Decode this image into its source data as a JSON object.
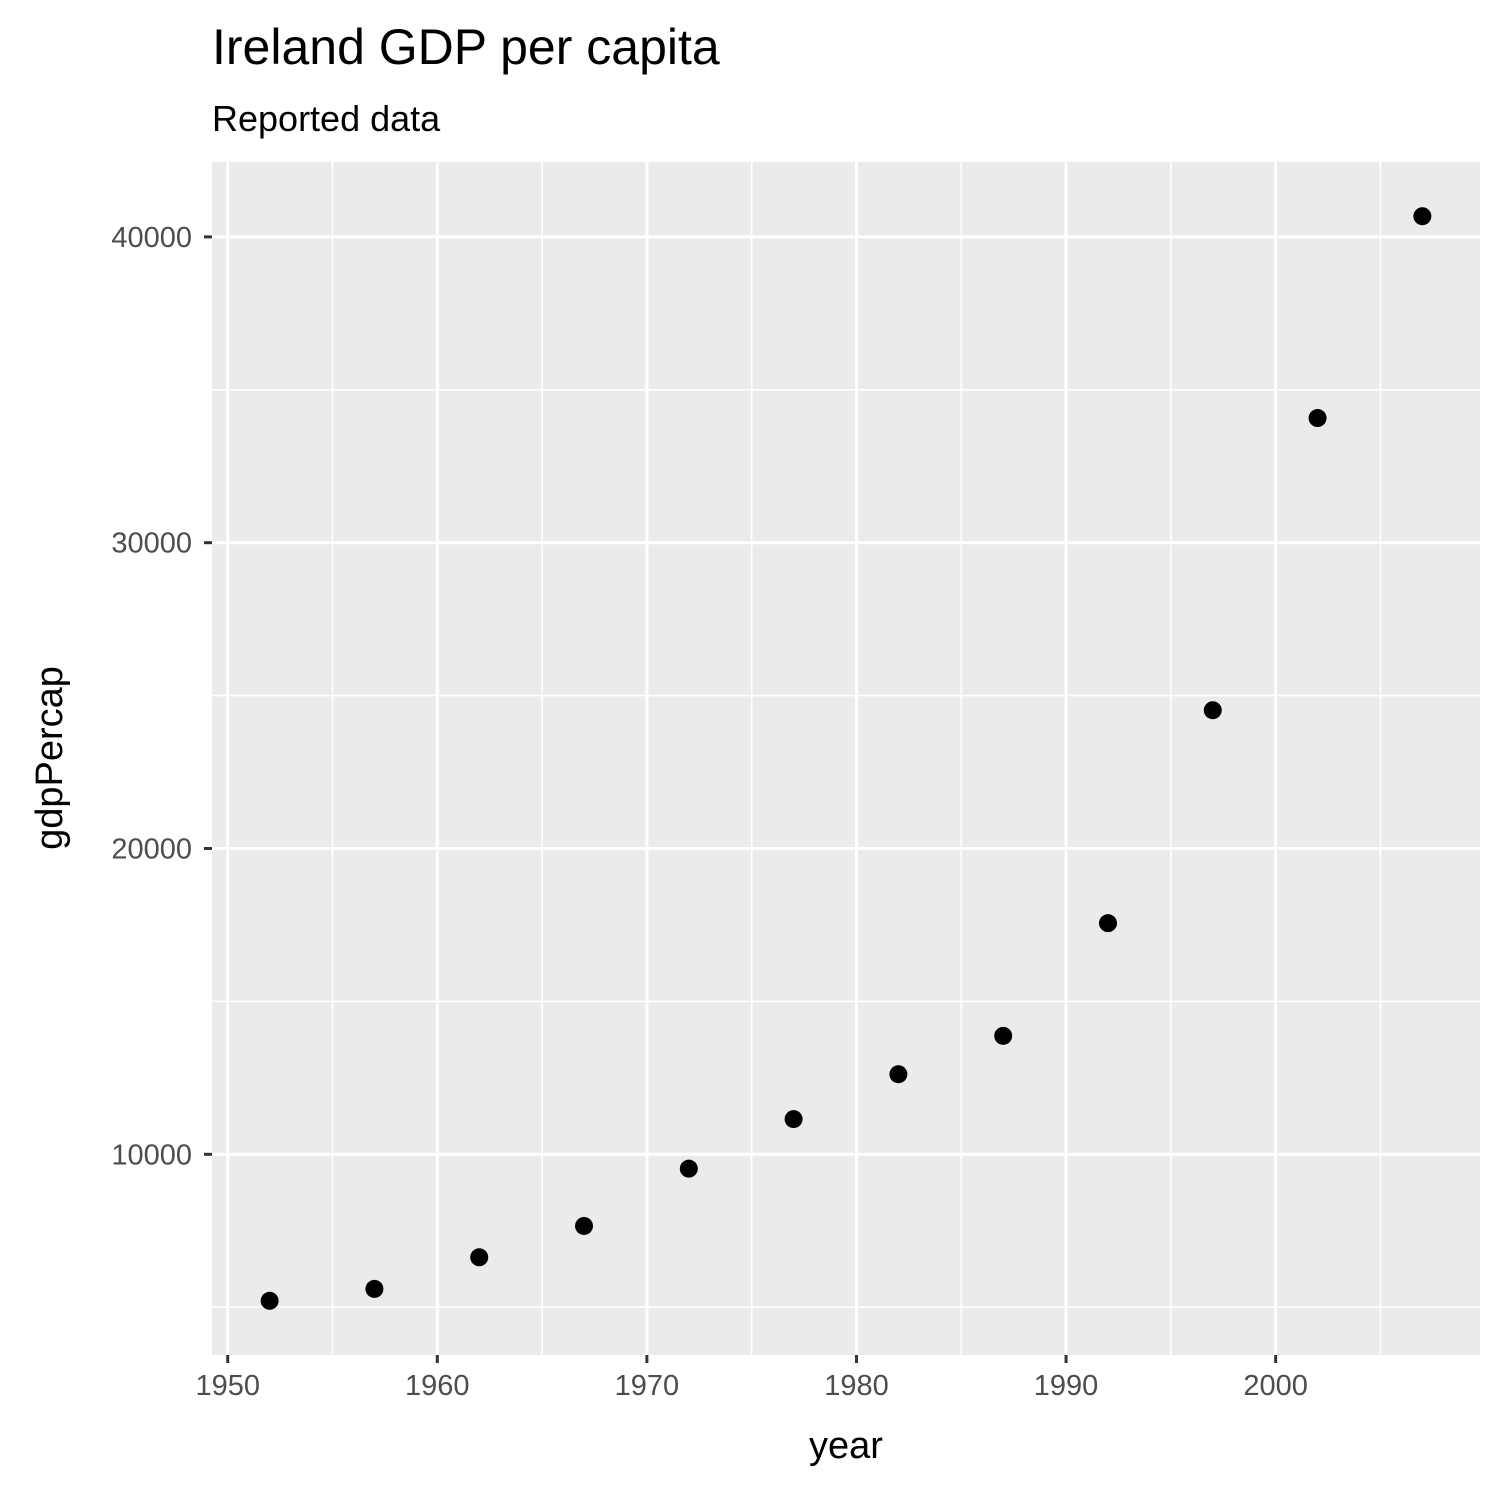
{
  "chart_data": {
    "type": "scatter",
    "title": "Ireland GDP per capita",
    "subtitle": "Reported data",
    "xlabel": "year",
    "ylabel": "gdpPercap",
    "x": [
      1952,
      1957,
      1962,
      1967,
      1972,
      1977,
      1982,
      1987,
      1992,
      1997,
      2002,
      2007
    ],
    "y": [
      5210,
      5599,
      6632,
      7656,
      9531,
      11151,
      12618,
      13873,
      17559,
      24522,
      34077,
      40676
    ],
    "xlim": [
      1949.25,
      2009.75
    ],
    "ylim": [
      3437,
      42449
    ],
    "x_ticks": [
      1950,
      1960,
      1970,
      1980,
      1990,
      2000
    ],
    "x_tick_labels": [
      "1950",
      "1960",
      "1970",
      "1980",
      "1990",
      "2000"
    ],
    "y_ticks": [
      10000,
      20000,
      30000,
      40000
    ],
    "y_tick_labels": [
      "10000",
      "20000",
      "30000",
      "40000"
    ],
    "x_minor_ticks": [
      1955,
      1965,
      1975,
      1985,
      1995,
      2005
    ],
    "y_minor_ticks": [
      5000,
      15000,
      25000,
      35000
    ],
    "grid": true,
    "legend": "none",
    "colors": {
      "panel_background": "#ebebeb",
      "grid": "#ffffff",
      "point": "#000000",
      "tick_label": "#4d4d4d",
      "axis_tick": "#333333"
    }
  }
}
